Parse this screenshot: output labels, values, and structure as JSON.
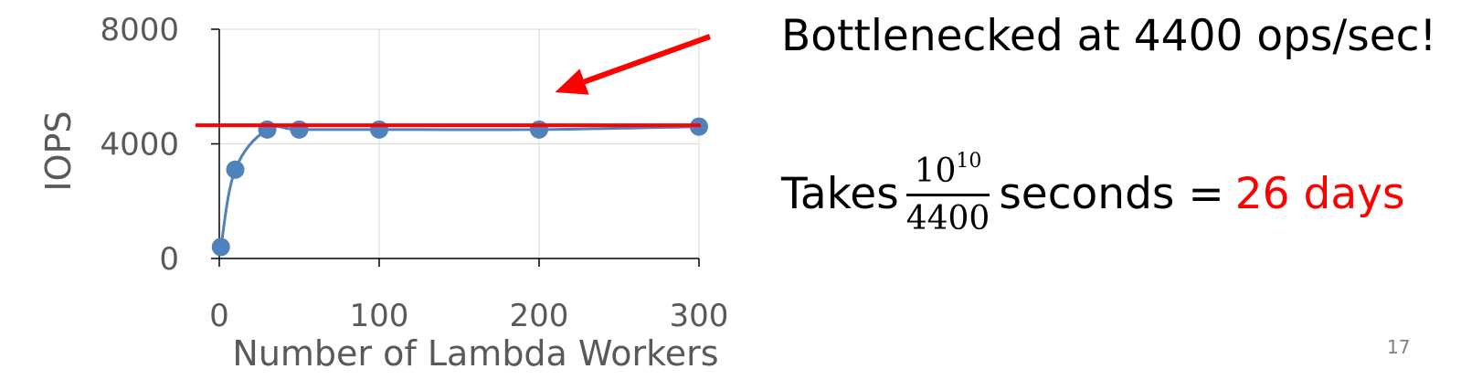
{
  "slide": {
    "headline": "Bottlenecked at 4400 ops/sec!",
    "takes_prefix": "Takes",
    "fraction_numerator_base": "10",
    "fraction_numerator_exp": "10",
    "fraction_denominator": "4400",
    "takes_suffix": "seconds =",
    "takes_result": "26 days",
    "page_number": "17"
  },
  "colors": {
    "series": "#4f81bd",
    "annotation": "#ff0000",
    "axis_text": "#595959",
    "grid": "#d9d9d9"
  },
  "chart_data": {
    "type": "scatter",
    "xlabel": "Number of Lambda Workers",
    "ylabel": "IOPS",
    "xlim": [
      0,
      300
    ],
    "ylim": [
      0,
      8000
    ],
    "x_ticks": [
      0,
      100,
      200,
      300
    ],
    "y_ticks": [
      0,
      4000,
      8000
    ],
    "x_tick_labels": [
      "0",
      "100",
      "200",
      "300"
    ],
    "y_tick_labels": [
      "0",
      "4000",
      "8000"
    ],
    "grid": "vertical and horizontal",
    "smooth_line": true,
    "series": [
      {
        "x": [
          1,
          10,
          30,
          50,
          100,
          200,
          300
        ],
        "y": [
          400,
          3100,
          4500,
          4500,
          4500,
          4500,
          4600
        ]
      }
    ],
    "annotations": {
      "threshold_line_y": 4650,
      "arrow_target_x": 210,
      "arrow_target_y": 5800
    }
  }
}
